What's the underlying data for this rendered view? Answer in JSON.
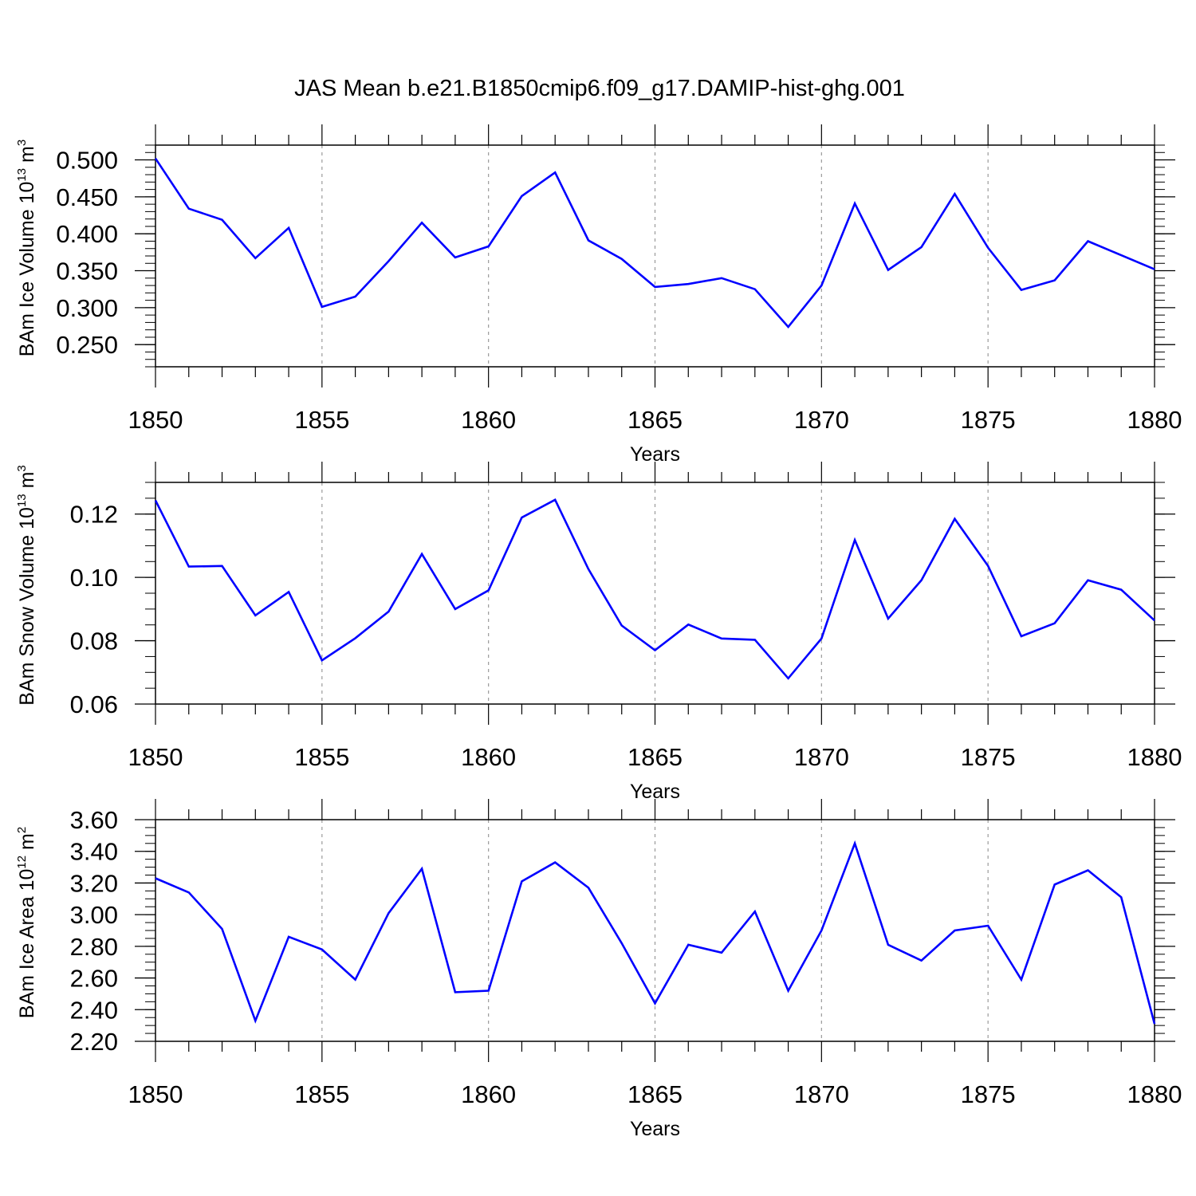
{
  "figure_title": "JAS Mean b.e21.B1850cmip6.f09_g17.DAMIP-hist-ghg.001",
  "colors": {
    "line": "#0000ff",
    "axis": "#000000",
    "grid": "#9a9a9a"
  },
  "chart_data": [
    {
      "type": "line",
      "ylabel": {
        "base": "BAm Ice Volume 10",
        "exp": "13",
        "unit": " m",
        "unit_exp": "3"
      },
      "xlabel": "Years",
      "xlim": [
        1850,
        1880
      ],
      "ylim": [
        0.22,
        0.52
      ],
      "xticks": [
        1850,
        1855,
        1860,
        1865,
        1870,
        1875,
        1880
      ],
      "yticks": [
        0.25,
        0.3,
        0.35,
        0.4,
        0.45,
        0.5
      ],
      "ytick_labels": [
        "0.250",
        "0.300",
        "0.350",
        "0.400",
        "0.450",
        "0.500"
      ],
      "yminor_step": 0.01,
      "x": [
        1850,
        1851,
        1852,
        1853,
        1854,
        1855,
        1856,
        1857,
        1858,
        1859,
        1860,
        1861,
        1862,
        1863,
        1864,
        1865,
        1866,
        1867,
        1868,
        1869,
        1870,
        1871,
        1872,
        1873,
        1874,
        1875,
        1876,
        1877,
        1878,
        1879,
        1880
      ],
      "values": [
        0.502,
        0.434,
        0.419,
        0.367,
        0.408,
        0.301,
        0.315,
        0.363,
        0.415,
        0.368,
        0.383,
        0.451,
        0.483,
        0.391,
        0.366,
        0.328,
        0.332,
        0.34,
        0.325,
        0.274,
        0.33,
        0.441,
        0.351,
        0.382,
        0.454,
        0.381,
        0.324,
        0.337,
        0.39,
        0.371,
        0.352
      ]
    },
    {
      "type": "line",
      "ylabel": {
        "base": "BAm Snow Volume 10",
        "exp": "13",
        "unit": " m",
        "unit_exp": "3"
      },
      "xlabel": "Years",
      "xlim": [
        1850,
        1880
      ],
      "ylim": [
        0.06,
        0.13
      ],
      "xticks": [
        1850,
        1855,
        1860,
        1865,
        1870,
        1875,
        1880
      ],
      "yticks": [
        0.06,
        0.08,
        0.1,
        0.12
      ],
      "ytick_labels": [
        "0.06",
        "0.08",
        "0.10",
        "0.12"
      ],
      "yminor_step": 0.005,
      "x": [
        1850,
        1851,
        1852,
        1853,
        1854,
        1855,
        1856,
        1857,
        1858,
        1859,
        1860,
        1861,
        1862,
        1863,
        1864,
        1865,
        1866,
        1867,
        1868,
        1869,
        1870,
        1871,
        1872,
        1873,
        1874,
        1875,
        1876,
        1877,
        1878,
        1879,
        1880
      ],
      "values": [
        0.1243,
        0.1034,
        0.1036,
        0.088,
        0.0954,
        0.0738,
        0.0808,
        0.0892,
        0.1074,
        0.09,
        0.0959,
        0.1189,
        0.1245,
        0.1026,
        0.0848,
        0.077,
        0.0851,
        0.0807,
        0.0803,
        0.0681,
        0.0807,
        0.1118,
        0.087,
        0.0991,
        0.1185,
        0.1036,
        0.0814,
        0.0855,
        0.0991,
        0.0961,
        0.0864
      ]
    },
    {
      "type": "line",
      "ylabel": {
        "base": "BAm Ice Area 10",
        "exp": "12",
        "unit": " m",
        "unit_exp": "2"
      },
      "xlabel": "Years",
      "xlim": [
        1850,
        1880
      ],
      "ylim": [
        2.2,
        3.6
      ],
      "xticks": [
        1850,
        1855,
        1860,
        1865,
        1870,
        1875,
        1880
      ],
      "yticks": [
        2.2,
        2.4,
        2.6,
        2.8,
        3.0,
        3.2,
        3.4,
        3.6
      ],
      "ytick_labels": [
        "2.20",
        "2.40",
        "2.60",
        "2.80",
        "3.00",
        "3.20",
        "3.40",
        "3.60"
      ],
      "yminor_step": 0.05,
      "x": [
        1850,
        1851,
        1852,
        1853,
        1854,
        1855,
        1856,
        1857,
        1858,
        1859,
        1860,
        1861,
        1862,
        1863,
        1864,
        1865,
        1866,
        1867,
        1868,
        1869,
        1870,
        1871,
        1872,
        1873,
        1874,
        1875,
        1876,
        1877,
        1878,
        1879,
        1880
      ],
      "values": [
        3.23,
        3.14,
        2.91,
        2.33,
        2.86,
        2.78,
        2.59,
        3.01,
        3.29,
        2.51,
        2.52,
        3.21,
        3.33,
        3.17,
        2.82,
        2.44,
        2.81,
        2.76,
        3.02,
        2.52,
        2.9,
        3.45,
        2.81,
        2.71,
        2.9,
        2.93,
        2.59,
        3.19,
        3.28,
        3.11,
        2.31
      ]
    }
  ]
}
